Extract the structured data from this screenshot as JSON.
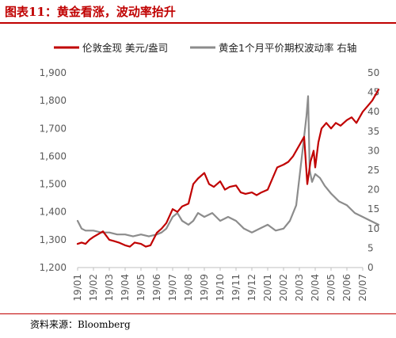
{
  "figure": {
    "title": "图表11：黄金看涨，波动率抬升",
    "source": "资料来源：Bloomberg"
  },
  "chart_data": {
    "type": "line",
    "x_ticks": [
      "19/01",
      "19/02",
      "19/03",
      "19/04",
      "19/05",
      "19/06",
      "19/07",
      "19/08",
      "19/09",
      "19/10",
      "19/11",
      "19/12",
      "20/01",
      "20/02",
      "20/03",
      "20/04",
      "20/05",
      "20/06",
      "20/07"
    ],
    "y_left": {
      "min": 1200,
      "max": 1900,
      "ticks": [
        "1,200",
        "1,300",
        "1,400",
        "1,500",
        "1,600",
        "1,700",
        "1,800",
        "1,900"
      ]
    },
    "y_right": {
      "min": 0,
      "max": 50,
      "ticks": [
        "0",
        "5",
        "10",
        "15",
        "20",
        "25",
        "30",
        "35",
        "40",
        "45",
        "50"
      ]
    },
    "legend_position": "top",
    "grid": false,
    "series": [
      {
        "name": "伦敦金现 美元/盎司",
        "axis": "left",
        "color": "#c00000",
        "x": [
          0,
          0.25,
          0.5,
          0.75,
          1.0,
          1.3,
          1.6,
          2.0,
          2.3,
          2.6,
          3.0,
          3.3,
          3.6,
          4.0,
          4.3,
          4.6,
          5.0,
          5.3,
          5.6,
          6.0,
          6.3,
          6.6,
          7.0,
          7.3,
          7.6,
          8.0,
          8.3,
          8.6,
          9.0,
          9.3,
          9.6,
          10.0,
          10.3,
          10.6,
          11.0,
          11.3,
          11.6,
          12.0,
          12.3,
          12.6,
          13.0,
          13.3,
          13.6,
          14.0,
          14.3,
          14.5,
          14.7,
          14.9,
          15.0,
          15.2,
          15.4,
          15.7,
          16.0,
          16.3,
          16.6,
          17.0,
          17.3,
          17.6,
          18.0,
          18.3,
          18.6,
          18.8,
          19.0
        ],
        "values": [
          1285,
          1290,
          1285,
          1300,
          1310,
          1320,
          1330,
          1300,
          1295,
          1290,
          1280,
          1275,
          1290,
          1285,
          1275,
          1280,
          1325,
          1340,
          1360,
          1410,
          1400,
          1420,
          1430,
          1500,
          1520,
          1540,
          1500,
          1490,
          1510,
          1480,
          1490,
          1495,
          1470,
          1465,
          1470,
          1460,
          1470,
          1480,
          1520,
          1560,
          1570,
          1580,
          1600,
          1640,
          1670,
          1500,
          1580,
          1620,
          1560,
          1650,
          1700,
          1720,
          1700,
          1720,
          1710,
          1730,
          1740,
          1720,
          1760,
          1780,
          1800,
          1820,
          1840
        ]
      },
      {
        "name": "黄金1个月平价期权波动率 右轴",
        "axis": "right",
        "color": "#8c8c8c",
        "x": [
          0,
          0.25,
          0.5,
          1.0,
          1.5,
          2.0,
          2.5,
          3.0,
          3.5,
          4.0,
          4.5,
          5.0,
          5.3,
          5.6,
          6.0,
          6.3,
          6.6,
          7.0,
          7.3,
          7.6,
          8.0,
          8.5,
          9.0,
          9.5,
          10.0,
          10.5,
          11.0,
          11.5,
          12.0,
          12.5,
          13.0,
          13.4,
          13.8,
          14.2,
          14.45,
          14.55,
          14.65,
          14.8,
          15.0,
          15.3,
          15.6,
          16.0,
          16.5,
          17.0,
          17.5,
          18.0,
          18.5,
          19.0
        ],
        "values": [
          12,
          10,
          9.5,
          9.5,
          9,
          9,
          8.5,
          8.5,
          8,
          8.5,
          8,
          8.5,
          9,
          10,
          13,
          14,
          12,
          11,
          12,
          14,
          13,
          14,
          12,
          13,
          12,
          10,
          9,
          10,
          11,
          9.5,
          10,
          12,
          16,
          30,
          39,
          44,
          25,
          22,
          24,
          23,
          21,
          19,
          17,
          16,
          14,
          13,
          12,
          11
        ]
      }
    ]
  }
}
